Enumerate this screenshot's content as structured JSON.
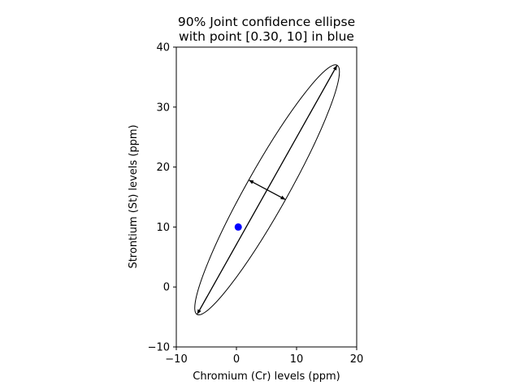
{
  "chart_data": {
    "type": "scatter",
    "title_lines": [
      "90% Joint confidence ellipse",
      "with point [0.30, 10] in blue"
    ],
    "xlabel": "Chromium (Cr) levels (ppm)",
    "ylabel": "Strontium (St) levels (ppm)",
    "xlim": [
      -10,
      20
    ],
    "ylim": [
      -10,
      40
    ],
    "xticks": [
      -10,
      0,
      10,
      20
    ],
    "yticks": [
      -10,
      0,
      10,
      20,
      30,
      40
    ],
    "xtick_labels": [
      "−10",
      "0",
      "10",
      "20"
    ],
    "ytick_labels": [
      "−10",
      "0",
      "10",
      "20",
      "30",
      "40"
    ],
    "grid": false,
    "point": {
      "x": 0.3,
      "y": 10,
      "color": "#0000ff"
    },
    "ellipse": {
      "center": [
        5.1,
        16.2
      ],
      "major_axis_end_a": [
        16.7,
        36.9
      ],
      "major_axis_end_b": [
        -6.5,
        -4.5
      ],
      "minor_axis_end_a": [
        2.1,
        17.8
      ],
      "minor_axis_end_b": [
        8.1,
        14.6
      ],
      "color": "#000000"
    }
  }
}
